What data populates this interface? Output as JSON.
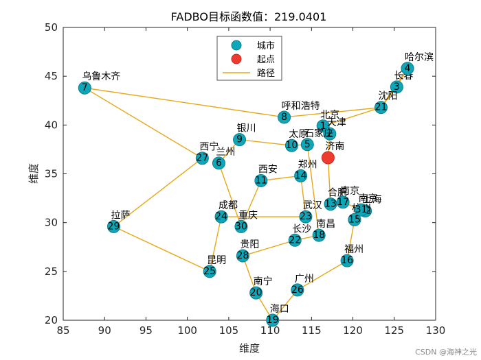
{
  "watermark": "CSDN @海神之光",
  "chart_data": {
    "type": "scatter",
    "title": "FADBO目标函数值：219.0401",
    "xlabel": "维度",
    "ylabel": "维度",
    "xlim": [
      85,
      130
    ],
    "ylim": [
      20,
      50
    ],
    "xticks": [
      85,
      90,
      95,
      100,
      105,
      110,
      115,
      120,
      125,
      130
    ],
    "yticks": [
      20,
      25,
      30,
      35,
      40,
      45,
      50
    ],
    "grid": false,
    "legend_location": "top-center",
    "legend": [
      {
        "name": "城市",
        "kind": "marker",
        "color": "#0fa6b8"
      },
      {
        "name": "起点",
        "kind": "marker",
        "color": "#ee3b2f"
      },
      {
        "name": "路径",
        "kind": "line",
        "color": "#e6a817"
      }
    ],
    "colors": {
      "city": "#0fa6b8",
      "city_edge": "#0b7d8c",
      "start": "#ee3b2f",
      "path": "#e6a817",
      "axis": "#262626"
    },
    "start": {
      "name": "济南",
      "x": 117.0,
      "y": 36.65
    },
    "cities": [
      {
        "idx": 1,
        "name": "北京",
        "x": 116.4,
        "y": 39.9
      },
      {
        "idx": 2,
        "name": "天津",
        "x": 117.2,
        "y": 39.1
      },
      {
        "idx": 3,
        "name": "长春",
        "x": 125.3,
        "y": 43.9
      },
      {
        "idx": 4,
        "name": "哈尔滨",
        "x": 126.6,
        "y": 45.8
      },
      {
        "idx": 5,
        "name": "石家庄",
        "x": 114.5,
        "y": 38.0
      },
      {
        "idx": 6,
        "name": "兰州",
        "x": 103.8,
        "y": 36.1
      },
      {
        "idx": 7,
        "name": "乌鲁木齐",
        "x": 87.6,
        "y": 43.8
      },
      {
        "idx": 8,
        "name": "呼和浩特",
        "x": 111.7,
        "y": 40.8
      },
      {
        "idx": 9,
        "name": "银川",
        "x": 106.3,
        "y": 38.5
      },
      {
        "idx": 10,
        "name": "太原",
        "x": 112.6,
        "y": 37.9
      },
      {
        "idx": 11,
        "name": "西安",
        "x": 108.9,
        "y": 34.3
      },
      {
        "idx": 12,
        "name": "上海",
        "x": 121.5,
        "y": 31.2
      },
      {
        "idx": 13,
        "name": "合肥",
        "x": 117.3,
        "y": 31.9
      },
      {
        "idx": 14,
        "name": "郑州",
        "x": 113.7,
        "y": 34.8
      },
      {
        "idx": 15,
        "name": "杭州",
        "x": 120.2,
        "y": 30.3
      },
      {
        "idx": 16,
        "name": "福州",
        "x": 119.3,
        "y": 26.1
      },
      {
        "idx": 17,
        "name": "南京",
        "x": 118.8,
        "y": 32.1
      },
      {
        "idx": 18,
        "name": "南昌",
        "x": 115.9,
        "y": 28.7
      },
      {
        "idx": 19,
        "name": "海口",
        "x": 110.3,
        "y": 20.0
      },
      {
        "idx": 20,
        "name": "南宁",
        "x": 108.3,
        "y": 22.8
      },
      {
        "idx": 21,
        "name": "沈阳",
        "x": 123.4,
        "y": 41.8
      },
      {
        "idx": 22,
        "name": "长沙",
        "x": 113.0,
        "y": 28.2
      },
      {
        "idx": 23,
        "name": "武汉",
        "x": 114.3,
        "y": 30.6
      },
      {
        "idx": 24,
        "name": "成都",
        "x": 104.1,
        "y": 30.6
      },
      {
        "idx": 25,
        "name": "昆明",
        "x": 102.7,
        "y": 25.0
      },
      {
        "idx": 26,
        "name": "广州",
        "x": 113.3,
        "y": 23.1
      },
      {
        "idx": 27,
        "name": "西宁",
        "x": 101.8,
        "y": 36.6
      },
      {
        "idx": 28,
        "name": "贵阳",
        "x": 106.7,
        "y": 26.6
      },
      {
        "idx": 29,
        "name": "拉萨",
        "x": 91.1,
        "y": 29.6
      },
      {
        "idx": 30,
        "name": "重庆",
        "x": 106.5,
        "y": 29.6
      },
      {
        "idx": 31,
        "name": "南京",
        "x": 121.0,
        "y": 31.3
      }
    ],
    "route": [
      [
        117.0,
        36.65
      ],
      [
        117.2,
        39.1
      ],
      [
        116.4,
        39.9
      ],
      [
        123.4,
        41.8
      ],
      [
        125.3,
        43.9
      ],
      [
        126.6,
        45.8
      ],
      [
        123.4,
        41.8
      ],
      [
        111.7,
        40.8
      ],
      [
        87.6,
        43.8
      ],
      [
        101.8,
        36.6
      ],
      [
        91.1,
        29.6
      ],
      [
        102.7,
        25.0
      ],
      [
        104.1,
        30.6
      ],
      [
        114.3,
        30.6
      ],
      [
        113.7,
        34.8
      ],
      [
        108.9,
        34.3
      ],
      [
        106.5,
        29.6
      ],
      [
        103.8,
        36.1
      ],
      [
        106.3,
        38.5
      ],
      [
        112.6,
        37.9
      ],
      [
        114.5,
        38.0
      ],
      [
        115.9,
        28.7
      ],
      [
        113.0,
        28.2
      ],
      [
        106.7,
        26.6
      ],
      [
        108.3,
        22.8
      ],
      [
        110.3,
        20.0
      ],
      [
        113.3,
        23.1
      ],
      [
        119.3,
        26.1
      ],
      [
        120.2,
        30.3
      ],
      [
        121.5,
        31.2
      ],
      [
        121.0,
        31.3
      ],
      [
        118.8,
        32.1
      ],
      [
        117.3,
        31.9
      ],
      [
        117.0,
        36.65
      ]
    ]
  }
}
